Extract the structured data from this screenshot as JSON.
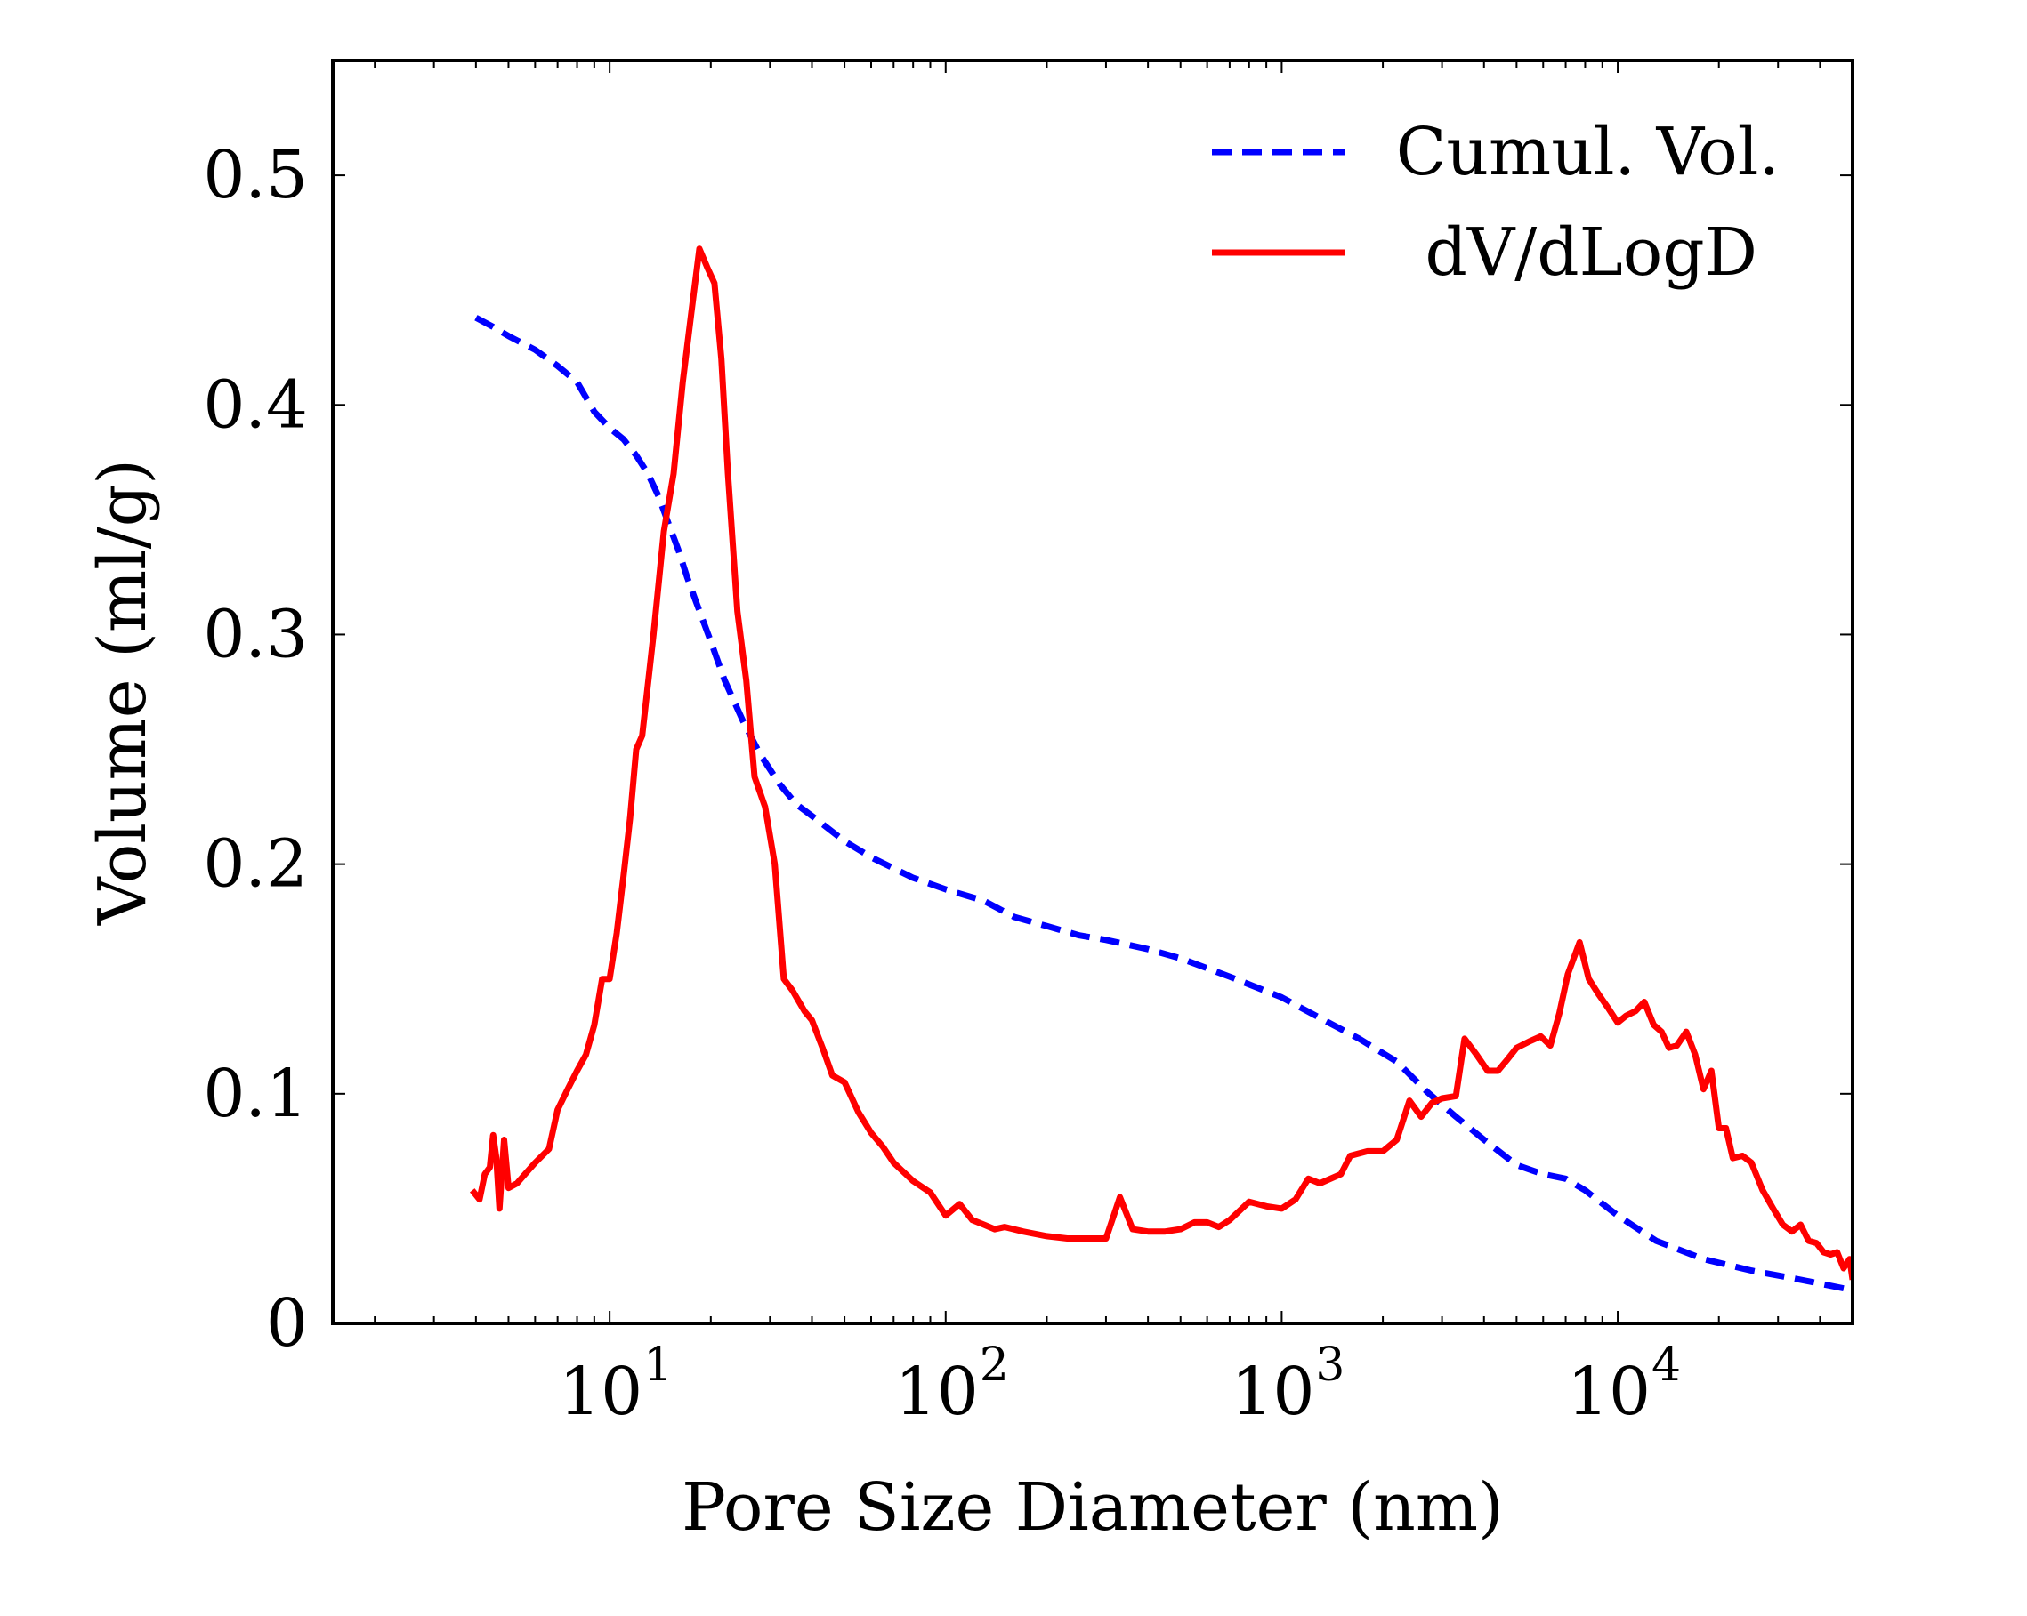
{
  "chart_data": {
    "type": "line",
    "title": "",
    "xlabel": "Pore Size Diameter (nm)",
    "ylabel": "Volume (ml/g)",
    "xscale": "log",
    "xlim": [
      1.5,
      50000
    ],
    "ylim": [
      0,
      0.55
    ],
    "grid": false,
    "legend_position": "top-right",
    "x_ticks": [
      {
        "base": "10",
        "exp": "1",
        "value": 10
      },
      {
        "base": "10",
        "exp": "2",
        "value": 100
      },
      {
        "base": "10",
        "exp": "3",
        "value": 1000
      },
      {
        "base": "10",
        "exp": "4",
        "value": 10000
      }
    ],
    "y_ticks": [
      {
        "label": "0",
        "value": 0
      },
      {
        "label": "0.1",
        "value": 0.1
      },
      {
        "label": "0.2",
        "value": 0.2
      },
      {
        "label": "0.3",
        "value": 0.3
      },
      {
        "label": "0.4",
        "value": 0.4
      },
      {
        "label": "0.5",
        "value": 0.5
      }
    ],
    "series": [
      {
        "name": "Cumul. Vol.",
        "color": "#0000ff",
        "style": "dashed",
        "points": [
          [
            4.0,
            0.438
          ],
          [
            4.5,
            0.434
          ],
          [
            5.0,
            0.43
          ],
          [
            6.0,
            0.424
          ],
          [
            7.0,
            0.417
          ],
          [
            8.0,
            0.41
          ],
          [
            9.0,
            0.397
          ],
          [
            10.0,
            0.39
          ],
          [
            11.0,
            0.385
          ],
          [
            12.0,
            0.378
          ],
          [
            13.0,
            0.37
          ],
          [
            14.0,
            0.36
          ],
          [
            15.0,
            0.348
          ],
          [
            16.0,
            0.337
          ],
          [
            17.0,
            0.325
          ],
          [
            18.0,
            0.315
          ],
          [
            20.0,
            0.297
          ],
          [
            22.0,
            0.28
          ],
          [
            25.0,
            0.262
          ],
          [
            28.0,
            0.248
          ],
          [
            32.0,
            0.235
          ],
          [
            36.0,
            0.226
          ],
          [
            40.0,
            0.221
          ],
          [
            50.0,
            0.21
          ],
          [
            60.0,
            0.203
          ],
          [
            80.0,
            0.194
          ],
          [
            100.0,
            0.189
          ],
          [
            130.0,
            0.184
          ],
          [
            160.0,
            0.177
          ],
          [
            200.0,
            0.173
          ],
          [
            250.0,
            0.169
          ],
          [
            300.0,
            0.167
          ],
          [
            400.0,
            0.163
          ],
          [
            500.0,
            0.159
          ],
          [
            700.0,
            0.151
          ],
          [
            1000.0,
            0.142
          ],
          [
            1300.0,
            0.133
          ],
          [
            1700.0,
            0.124
          ],
          [
            2200.0,
            0.114
          ],
          [
            2700.0,
            0.101
          ],
          [
            3300.0,
            0.09
          ],
          [
            4000.0,
            0.08
          ],
          [
            5000.0,
            0.069
          ],
          [
            6000.0,
            0.065
          ],
          [
            7000.0,
            0.063
          ],
          [
            8000.0,
            0.058
          ],
          [
            10000.0,
            0.047
          ],
          [
            13000.0,
            0.036
          ],
          [
            18000.0,
            0.028
          ],
          [
            25000.0,
            0.023
          ],
          [
            35000.0,
            0.019
          ],
          [
            48000.0,
            0.015
          ]
        ]
      },
      {
        "name": "dV/dLogD",
        "color": "#ff0000",
        "style": "solid",
        "points": [
          [
            3.9,
            0.058
          ],
          [
            4.1,
            0.054
          ],
          [
            4.25,
            0.065
          ],
          [
            4.4,
            0.068
          ],
          [
            4.5,
            0.082
          ],
          [
            4.6,
            0.072
          ],
          [
            4.7,
            0.05
          ],
          [
            4.85,
            0.08
          ],
          [
            5.0,
            0.059
          ],
          [
            5.3,
            0.061
          ],
          [
            5.6,
            0.065
          ],
          [
            6.0,
            0.07
          ],
          [
            6.6,
            0.076
          ],
          [
            7.0,
            0.093
          ],
          [
            7.5,
            0.102
          ],
          [
            8.0,
            0.11
          ],
          [
            8.5,
            0.117
          ],
          [
            9.0,
            0.13
          ],
          [
            9.5,
            0.15
          ],
          [
            10.0,
            0.15
          ],
          [
            10.5,
            0.17
          ],
          [
            11.0,
            0.195
          ],
          [
            11.5,
            0.22
          ],
          [
            12.0,
            0.25
          ],
          [
            12.5,
            0.256
          ],
          [
            13.5,
            0.3
          ],
          [
            14.5,
            0.345
          ],
          [
            15.5,
            0.37
          ],
          [
            16.5,
            0.41
          ],
          [
            17.5,
            0.44
          ],
          [
            18.5,
            0.468
          ],
          [
            19.5,
            0.46
          ],
          [
            20.5,
            0.453
          ],
          [
            21.5,
            0.42
          ],
          [
            22.5,
            0.37
          ],
          [
            24.0,
            0.31
          ],
          [
            25.5,
            0.28
          ],
          [
            27.0,
            0.238
          ],
          [
            29.0,
            0.225
          ],
          [
            31.0,
            0.2
          ],
          [
            33.0,
            0.15
          ],
          [
            35.0,
            0.145
          ],
          [
            38.0,
            0.136
          ],
          [
            40.0,
            0.132
          ],
          [
            43.0,
            0.12
          ],
          [
            46.0,
            0.108
          ],
          [
            50.0,
            0.105
          ],
          [
            55.0,
            0.092
          ],
          [
            60.0,
            0.083
          ],
          [
            65.0,
            0.077
          ],
          [
            70.0,
            0.07
          ],
          [
            80.0,
            0.062
          ],
          [
            90.0,
            0.057
          ],
          [
            100.0,
            0.047
          ],
          [
            110.0,
            0.052
          ],
          [
            120.0,
            0.045
          ],
          [
            130.0,
            0.043
          ],
          [
            140.0,
            0.041
          ],
          [
            150.0,
            0.042
          ],
          [
            170.0,
            0.04
          ],
          [
            200.0,
            0.038
          ],
          [
            230.0,
            0.037
          ],
          [
            260.0,
            0.037
          ],
          [
            300.0,
            0.037
          ],
          [
            330.0,
            0.055
          ],
          [
            360.0,
            0.041
          ],
          [
            400.0,
            0.04
          ],
          [
            450.0,
            0.04
          ],
          [
            500.0,
            0.041
          ],
          [
            550.0,
            0.044
          ],
          [
            600.0,
            0.044
          ],
          [
            650.0,
            0.042
          ],
          [
            700.0,
            0.045
          ],
          [
            800.0,
            0.053
          ],
          [
            900.0,
            0.051
          ],
          [
            1000.0,
            0.05
          ],
          [
            1100.0,
            0.054
          ],
          [
            1200.0,
            0.063
          ],
          [
            1300.0,
            0.061
          ],
          [
            1500.0,
            0.065
          ],
          [
            1600.0,
            0.073
          ],
          [
            1800.0,
            0.075
          ],
          [
            2000.0,
            0.075
          ],
          [
            2200.0,
            0.08
          ],
          [
            2400.0,
            0.097
          ],
          [
            2600.0,
            0.09
          ],
          [
            2800.0,
            0.096
          ],
          [
            3000.0,
            0.098
          ],
          [
            3300.0,
            0.099
          ],
          [
            3500.0,
            0.124
          ],
          [
            3800.0,
            0.117
          ],
          [
            4100.0,
            0.11
          ],
          [
            4400.0,
            0.11
          ],
          [
            4700.0,
            0.115
          ],
          [
            5000.0,
            0.12
          ],
          [
            5500.0,
            0.123
          ],
          [
            5900.0,
            0.125
          ],
          [
            6300.0,
            0.121
          ],
          [
            6700.0,
            0.135
          ],
          [
            7100.0,
            0.152
          ],
          [
            7700.0,
            0.166
          ],
          [
            8200.0,
            0.15
          ],
          [
            8800.0,
            0.143
          ],
          [
            9400.0,
            0.137
          ],
          [
            10000.0,
            0.131
          ],
          [
            10600.0,
            0.134
          ],
          [
            11300.0,
            0.136
          ],
          [
            12000.0,
            0.14
          ],
          [
            12800.0,
            0.13
          ],
          [
            13500.0,
            0.127
          ],
          [
            14200.0,
            0.12
          ],
          [
            15000.0,
            0.121
          ],
          [
            16000.0,
            0.127
          ],
          [
            17000.0,
            0.117
          ],
          [
            18000.0,
            0.102
          ],
          [
            19000.0,
            0.11
          ],
          [
            20000.0,
            0.085
          ],
          [
            21000.0,
            0.085
          ],
          [
            22000.0,
            0.072
          ],
          [
            23500.0,
            0.073
          ],
          [
            25000.0,
            0.07
          ],
          [
            27000.0,
            0.058
          ],
          [
            29000.0,
            0.05
          ],
          [
            31000.0,
            0.043
          ],
          [
            33000.0,
            0.04
          ],
          [
            35000.0,
            0.043
          ],
          [
            37000.0,
            0.036
          ],
          [
            39000.0,
            0.035
          ],
          [
            41000.0,
            0.031
          ],
          [
            43000.0,
            0.03
          ],
          [
            45000.0,
            0.031
          ],
          [
            47000.0,
            0.024
          ],
          [
            49000.0,
            0.028
          ],
          [
            50000.0,
            0.019
          ]
        ]
      }
    ]
  }
}
